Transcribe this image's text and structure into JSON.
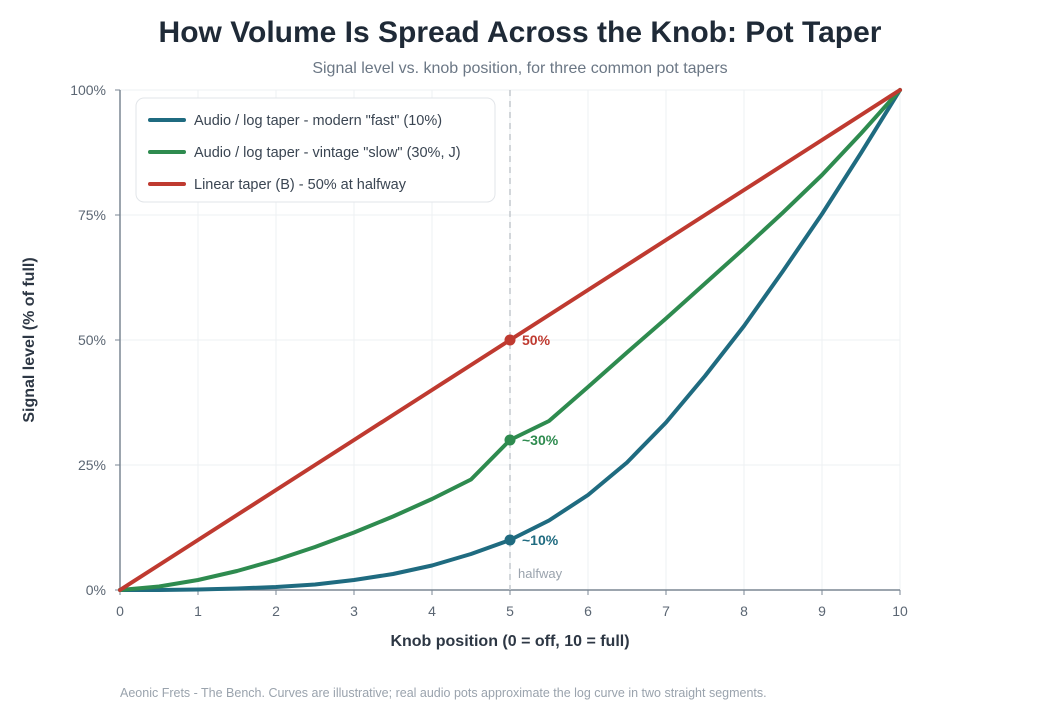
{
  "header": {
    "title": "How Volume Is Spread Across the Knob: Pot Taper",
    "subtitle": "Signal level vs. knob position, for three common pot tapers"
  },
  "footer": {
    "text": "Aeonic Frets - The Bench. Curves are illustrative; real audio pots approximate the log curve in two straight segments."
  },
  "chart_data": {
    "type": "line",
    "title": "How Volume Is Spread Across the Knob: Pot Taper",
    "subtitle": "Signal level vs. knob position, for three common pot tapers",
    "xlabel": "Knob position (0 = off, 10 = full)",
    "ylabel": "Signal level (% of full)",
    "xlim": [
      0,
      10
    ],
    "ylim": [
      0,
      100
    ],
    "x_ticks": [
      0,
      1,
      2,
      3,
      4,
      5,
      6,
      7,
      8,
      9,
      10
    ],
    "x_tick_labels": [
      "0",
      "1",
      "2",
      "3",
      "4",
      "5",
      "6",
      "7",
      "8",
      "9",
      "10"
    ],
    "y_ticks": [
      0,
      25,
      50,
      75,
      100
    ],
    "y_tick_labels": [
      "0%",
      "25%",
      "50%",
      "75%",
      "100%"
    ],
    "grid": true,
    "legend_position": "top-left",
    "x": [
      0,
      0.5,
      1,
      1.5,
      2,
      2.5,
      3,
      3.5,
      4,
      4.5,
      5,
      5.5,
      6,
      6.5,
      7,
      7.5,
      8,
      8.5,
      9,
      9.5,
      10
    ],
    "series": [
      {
        "name": "Audio / log taper - modern \"fast\" (10%)",
        "color": "#1f6b80",
        "values": [
          0,
          0.0,
          0.1,
          0.3,
          0.6,
          1.1,
          2.0,
          3.2,
          4.9,
          7.2,
          10,
          13.9,
          19.0,
          25.5,
          33.5,
          42.8,
          52.8,
          63.8,
          75.2,
          87.4,
          100
        ]
      },
      {
        "name": "Audio / log taper - vintage \"slow\" (30%, J)",
        "color": "#2e8b4f",
        "values": [
          0,
          0.7,
          2.0,
          3.8,
          6.0,
          8.6,
          11.5,
          14.7,
          18.2,
          22.1,
          30,
          33.8,
          40.6,
          47.5,
          54.3,
          61.3,
          68.3,
          75.5,
          83.0,
          91.3,
          100
        ]
      },
      {
        "name": "Linear taper (B) - 50% at halfway",
        "color": "#bf3a30",
        "values": [
          0,
          5,
          10,
          15,
          20,
          25,
          30,
          35,
          40,
          45,
          50,
          55,
          60,
          65,
          70,
          75,
          80,
          85,
          90,
          95,
          100
        ]
      }
    ],
    "markers": [
      {
        "series": 2,
        "x": 5,
        "y": 50,
        "label": "50%"
      },
      {
        "series": 1,
        "x": 5,
        "y": 30,
        "label": "~30%"
      },
      {
        "series": 0,
        "x": 5,
        "y": 10,
        "label": "~10%"
      }
    ],
    "reference_line": {
      "x": 5,
      "label": "halfway"
    }
  }
}
